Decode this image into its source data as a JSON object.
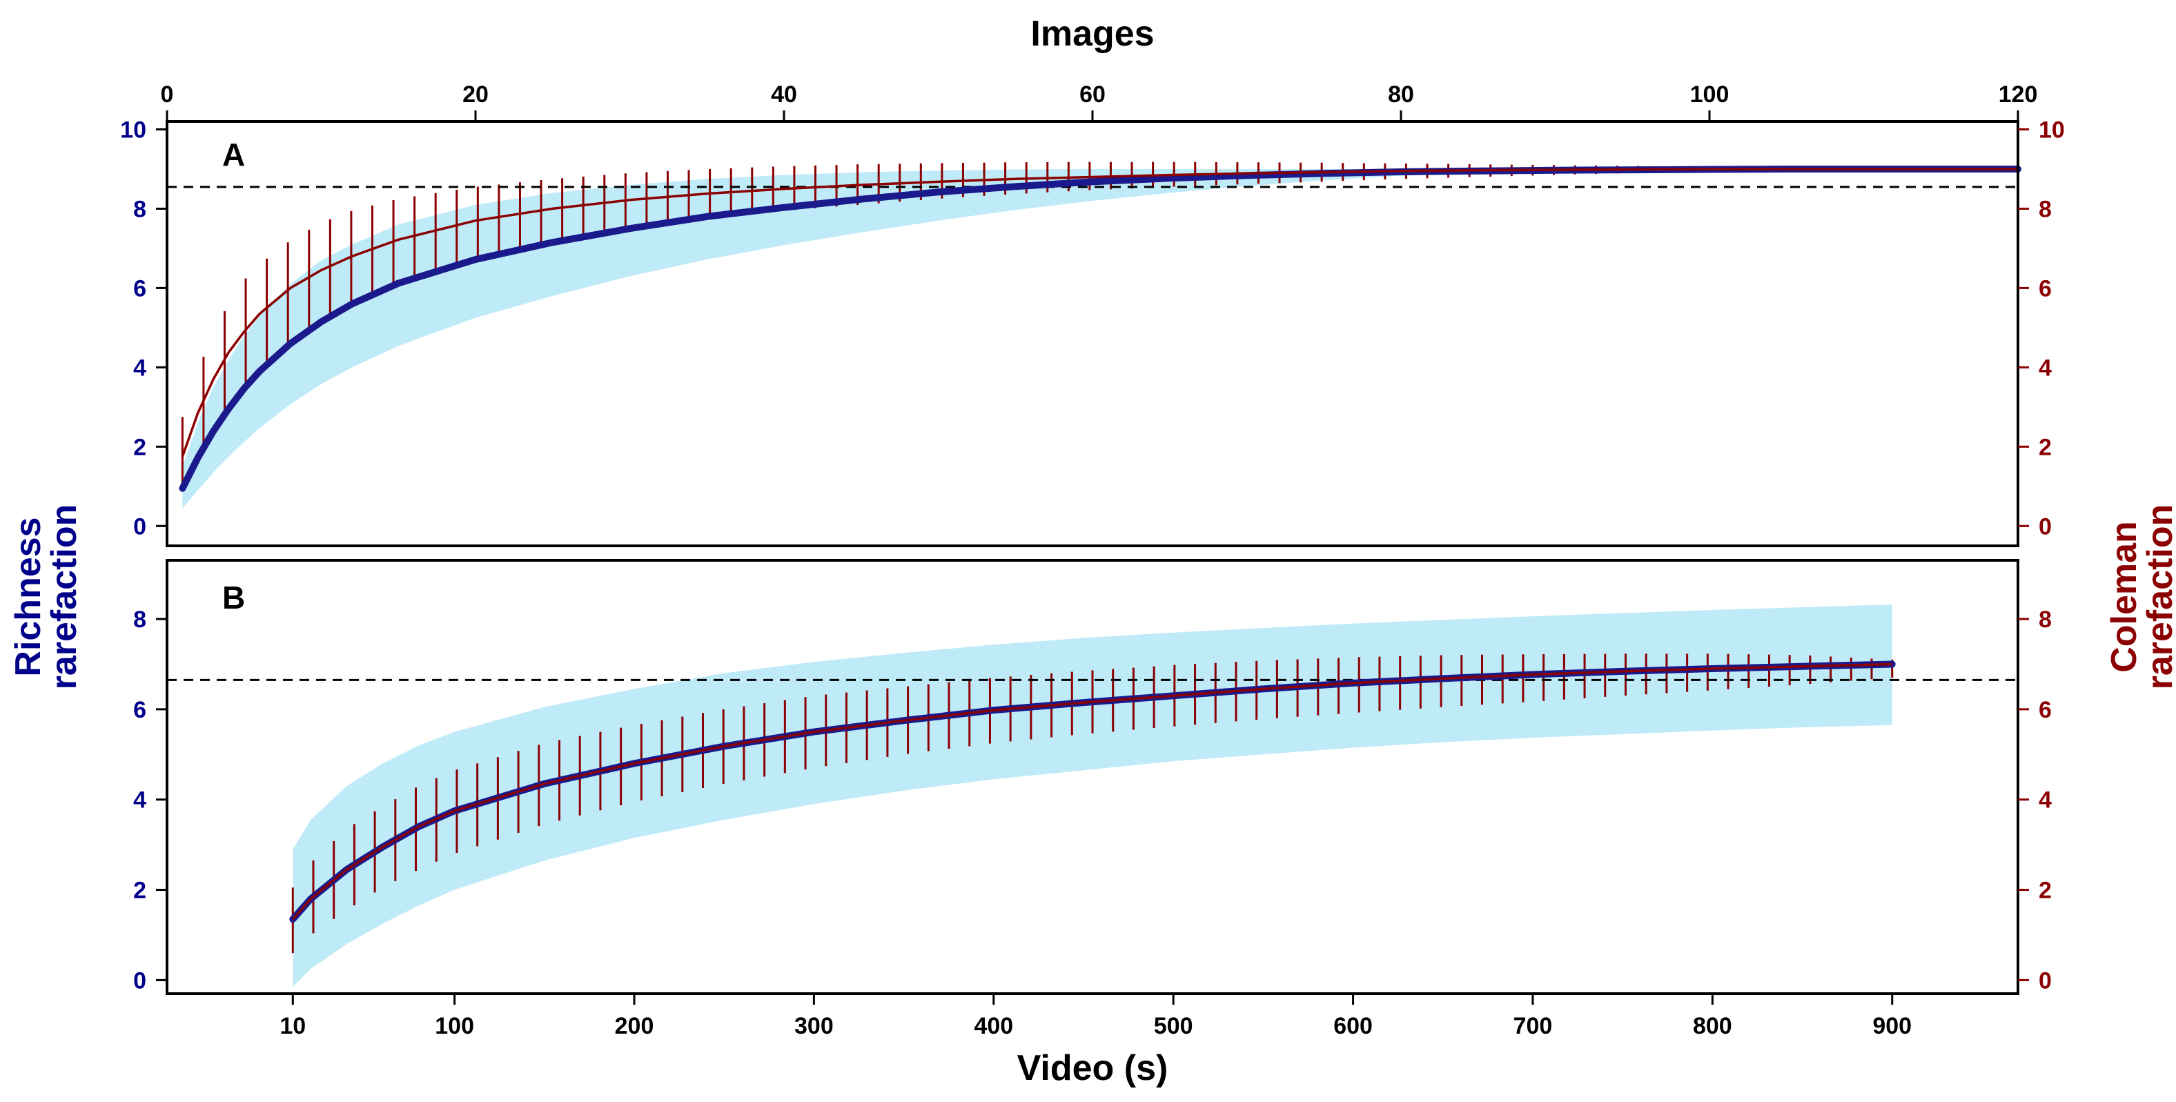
{
  "figure": {
    "top_axis_title": "Images",
    "bottom_axis_title": "Video (s)",
    "left_axis_title": [
      "Richness",
      "rarefaction"
    ],
    "right_axis_title": [
      "Coleman",
      "rarefaction"
    ]
  },
  "colors": {
    "richness": "#1a1a8c",
    "richness_ci": "#bfeaf8",
    "coleman": "#8b0000",
    "left_axis": "#00008b",
    "right_axis": "#8b0000",
    "reference_line": "#000000"
  },
  "chart_data": [
    {
      "type": "line",
      "panel_label": "A",
      "x_top": {
        "ticks": [
          0,
          20,
          40,
          60,
          80,
          100,
          120
        ],
        "range": [
          0,
          120
        ]
      },
      "y_left": {
        "ticks": [
          0,
          2,
          4,
          6,
          8,
          10
        ],
        "range": [
          -0.5,
          10.2
        ]
      },
      "y_right": {
        "ticks": [
          0,
          2,
          4,
          6,
          8,
          10
        ],
        "range": [
          -0.5,
          10.2
        ]
      },
      "reference_line": 8.55,
      "series": [
        {
          "kind": "mean_with_ci",
          "axis": "left",
          "x": [
            1,
            2,
            3,
            4,
            5,
            6,
            8,
            10,
            12,
            15,
            20,
            25,
            30,
            35,
            40,
            45,
            50,
            55,
            60,
            65,
            70,
            75,
            80,
            85,
            90,
            95,
            100,
            105,
            110,
            115,
            120
          ],
          "mean": [
            0.95,
            1.72,
            2.39,
            2.96,
            3.47,
            3.9,
            4.6,
            5.15,
            5.6,
            6.12,
            6.72,
            7.15,
            7.5,
            7.8,
            8.03,
            8.24,
            8.42,
            8.56,
            8.68,
            8.77,
            8.84,
            8.89,
            8.93,
            8.95,
            8.97,
            8.98,
            8.99,
            9.0,
            9.0,
            9.0,
            9.0
          ],
          "ci_lower": [
            0.45,
            0.9,
            1.35,
            1.75,
            2.12,
            2.47,
            3.07,
            3.58,
            4.0,
            4.54,
            5.25,
            5.8,
            6.3,
            6.72,
            7.08,
            7.4,
            7.7,
            7.97,
            8.2,
            8.4,
            8.57,
            8.72,
            8.83,
            8.91,
            8.96,
            8.99,
            9.0,
            9.0,
            9.0,
            9.0,
            9.0
          ],
          "ci_upper": [
            1.5,
            2.6,
            3.5,
            4.2,
            4.8,
            5.3,
            6.1,
            6.7,
            7.1,
            7.6,
            8.1,
            8.4,
            8.6,
            8.75,
            8.85,
            8.92,
            8.96,
            8.99,
            9.0,
            9.0,
            9.0,
            9.0,
            9.0,
            9.0,
            9.0,
            9.0,
            9.0,
            9.0,
            9.0,
            9.0,
            9.0
          ]
        },
        {
          "kind": "mean_with_error_bars",
          "axis": "right",
          "x": [
            1,
            2,
            3,
            4,
            5,
            6,
            8,
            10,
            12,
            15,
            20,
            25,
            30,
            35,
            40,
            45,
            50,
            55,
            60,
            65,
            70,
            75,
            80,
            85,
            90,
            95,
            100,
            110,
            120
          ],
          "mean": [
            1.75,
            2.85,
            3.7,
            4.38,
            4.9,
            5.35,
            6.0,
            6.45,
            6.8,
            7.22,
            7.7,
            8.0,
            8.22,
            8.38,
            8.5,
            8.6,
            8.68,
            8.75,
            8.8,
            8.85,
            8.89,
            8.92,
            8.95,
            8.97,
            8.98,
            8.99,
            9.0,
            9.0,
            9.0
          ],
          "err_lower": [
            0.95,
            1.8,
            2.5,
            3.05,
            3.55,
            3.95,
            4.65,
            5.2,
            5.6,
            6.15,
            6.75,
            7.15,
            7.5,
            7.75,
            7.95,
            8.1,
            8.25,
            8.37,
            8.47,
            8.55,
            8.62,
            8.68,
            8.75,
            8.8,
            8.85,
            8.9,
            8.94,
            8.97,
            9.0
          ],
          "err_upper": [
            2.75,
            3.9,
            4.9,
            5.6,
            6.2,
            6.6,
            7.2,
            7.65,
            7.95,
            8.25,
            8.55,
            8.75,
            8.9,
            9.0,
            9.07,
            9.12,
            9.15,
            9.17,
            9.18,
            9.18,
            9.17,
            9.16,
            9.14,
            9.12,
            9.1,
            9.08,
            9.06,
            9.03,
            9.0
          ]
        }
      ]
    },
    {
      "type": "line",
      "panel_label": "B",
      "x_bottom": {
        "ticks": [
          10,
          100,
          200,
          300,
          400,
          500,
          600,
          700,
          800,
          900
        ],
        "range": [
          -60,
          970
        ]
      },
      "y_left": {
        "ticks": [
          0,
          2,
          4,
          6,
          8
        ],
        "range": [
          -0.3,
          9.3
        ]
      },
      "y_right": {
        "ticks": [
          0,
          2,
          4,
          6,
          8
        ],
        "range": [
          -0.3,
          9.3
        ]
      },
      "reference_line": 6.65,
      "series": [
        {
          "kind": "mean_with_ci",
          "axis": "left",
          "x": [
            10,
            20,
            40,
            60,
            80,
            100,
            150,
            200,
            250,
            300,
            350,
            400,
            450,
            500,
            550,
            600,
            650,
            700,
            750,
            800,
            850,
            900
          ],
          "mean": [
            1.35,
            1.8,
            2.45,
            2.95,
            3.4,
            3.75,
            4.35,
            4.8,
            5.18,
            5.5,
            5.75,
            5.98,
            6.15,
            6.3,
            6.45,
            6.58,
            6.68,
            6.77,
            6.84,
            6.9,
            6.95,
            7.0
          ],
          "ci_lower": [
            -0.15,
            0.25,
            0.8,
            1.25,
            1.65,
            2.0,
            2.65,
            3.15,
            3.55,
            3.9,
            4.2,
            4.45,
            4.65,
            4.85,
            5.0,
            5.15,
            5.27,
            5.37,
            5.45,
            5.53,
            5.6,
            5.65
          ],
          "ci_upper": [
            2.9,
            3.55,
            4.3,
            4.8,
            5.2,
            5.5,
            6.05,
            6.45,
            6.8,
            7.05,
            7.25,
            7.43,
            7.58,
            7.7,
            7.8,
            7.9,
            7.98,
            8.06,
            8.13,
            8.2,
            8.26,
            8.32
          ]
        },
        {
          "kind": "mean_with_error_bars",
          "axis": "right",
          "x": [
            10,
            20,
            40,
            60,
            80,
            100,
            150,
            200,
            250,
            300,
            350,
            400,
            450,
            500,
            550,
            600,
            650,
            700,
            750,
            800,
            850,
            900
          ],
          "mean": [
            1.35,
            1.8,
            2.45,
            2.95,
            3.4,
            3.75,
            4.35,
            4.8,
            5.18,
            5.5,
            5.75,
            5.98,
            6.15,
            6.3,
            6.45,
            6.58,
            6.68,
            6.77,
            6.84,
            6.9,
            6.95,
            7.0
          ],
          "err_lower": [
            0.6,
            1.0,
            1.55,
            2.05,
            2.45,
            2.8,
            3.45,
            3.95,
            4.35,
            4.7,
            5.0,
            5.25,
            5.45,
            5.62,
            5.78,
            5.92,
            6.05,
            6.17,
            6.3,
            6.42,
            6.55,
            6.7
          ],
          "err_upper": [
            2.05,
            2.6,
            3.35,
            3.85,
            4.3,
            4.65,
            5.25,
            5.65,
            6.0,
            6.3,
            6.5,
            6.7,
            6.85,
            6.98,
            7.08,
            7.15,
            7.2,
            7.22,
            7.23,
            7.23,
            7.2,
            7.1
          ]
        }
      ]
    }
  ]
}
